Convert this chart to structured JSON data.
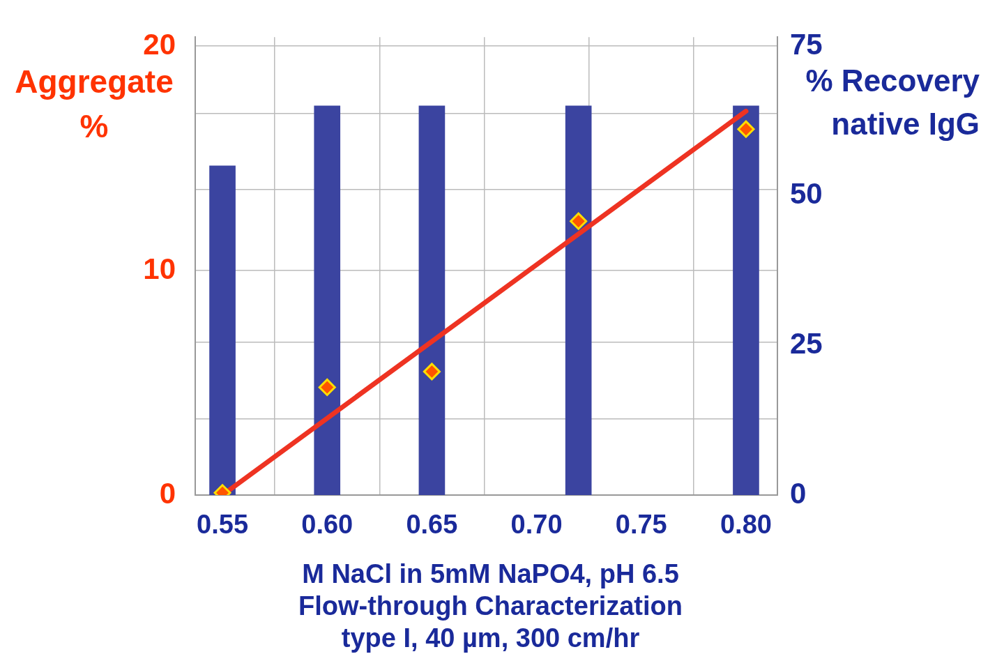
{
  "chart_data": {
    "type": "bar",
    "xlabel": "M NaCl in 5mM NaPO4, pH 6.5",
    "ylabel": "Aggregate %",
    "y2label": "% Recovery native IgG",
    "annotations": [
      "Flow-through Characterization",
      "type I, 40 µm, 300 cm/hr"
    ],
    "xlim": [
      0.537,
      0.815
    ],
    "xticks": [
      {
        "value": 0.55,
        "label": "0.55"
      },
      {
        "value": 0.6,
        "label": "0.60"
      },
      {
        "value": 0.65,
        "label": "0.65"
      },
      {
        "value": 0.7,
        "label": "0.70"
      },
      {
        "value": 0.75,
        "label": "0.75"
      },
      {
        "value": 0.8,
        "label": "0.80"
      }
    ],
    "ylim": [
      0,
      20.4
    ],
    "yticks": [
      0,
      {
        "value": 3.4,
        "label": null
      },
      {
        "value": 6.8,
        "label": null
      },
      10,
      {
        "value": 13.6,
        "label": null
      },
      {
        "value": 17,
        "label": null
      },
      20
    ],
    "y2lim": [
      0,
      76.5
    ],
    "y2ticks": [
      0,
      25,
      50,
      75
    ],
    "grid": true,
    "legend": false,
    "series": [
      {
        "axis": "y2",
        "color": "#3b44a0",
        "x": [
          0.55,
          0.6,
          0.65,
          0.72,
          0.8
        ],
        "values": [
          55,
          65,
          65,
          65,
          65
        ]
      },
      {
        "type": "scatter",
        "axis": "y",
        "color": "#ff5500",
        "marker": "diamond",
        "x": [
          0.55,
          0.6,
          0.65,
          0.72,
          0.8
        ],
        "values": [
          0.1,
          4.8,
          5.5,
          12.2,
          16.3
        ]
      },
      {
        "type": "line",
        "axis": "y",
        "color": "#ee3322",
        "marker": "none",
        "line_style": "solid",
        "x": [
          0.55,
          0.8
        ],
        "values": [
          0,
          17.1
        ]
      }
    ]
  }
}
